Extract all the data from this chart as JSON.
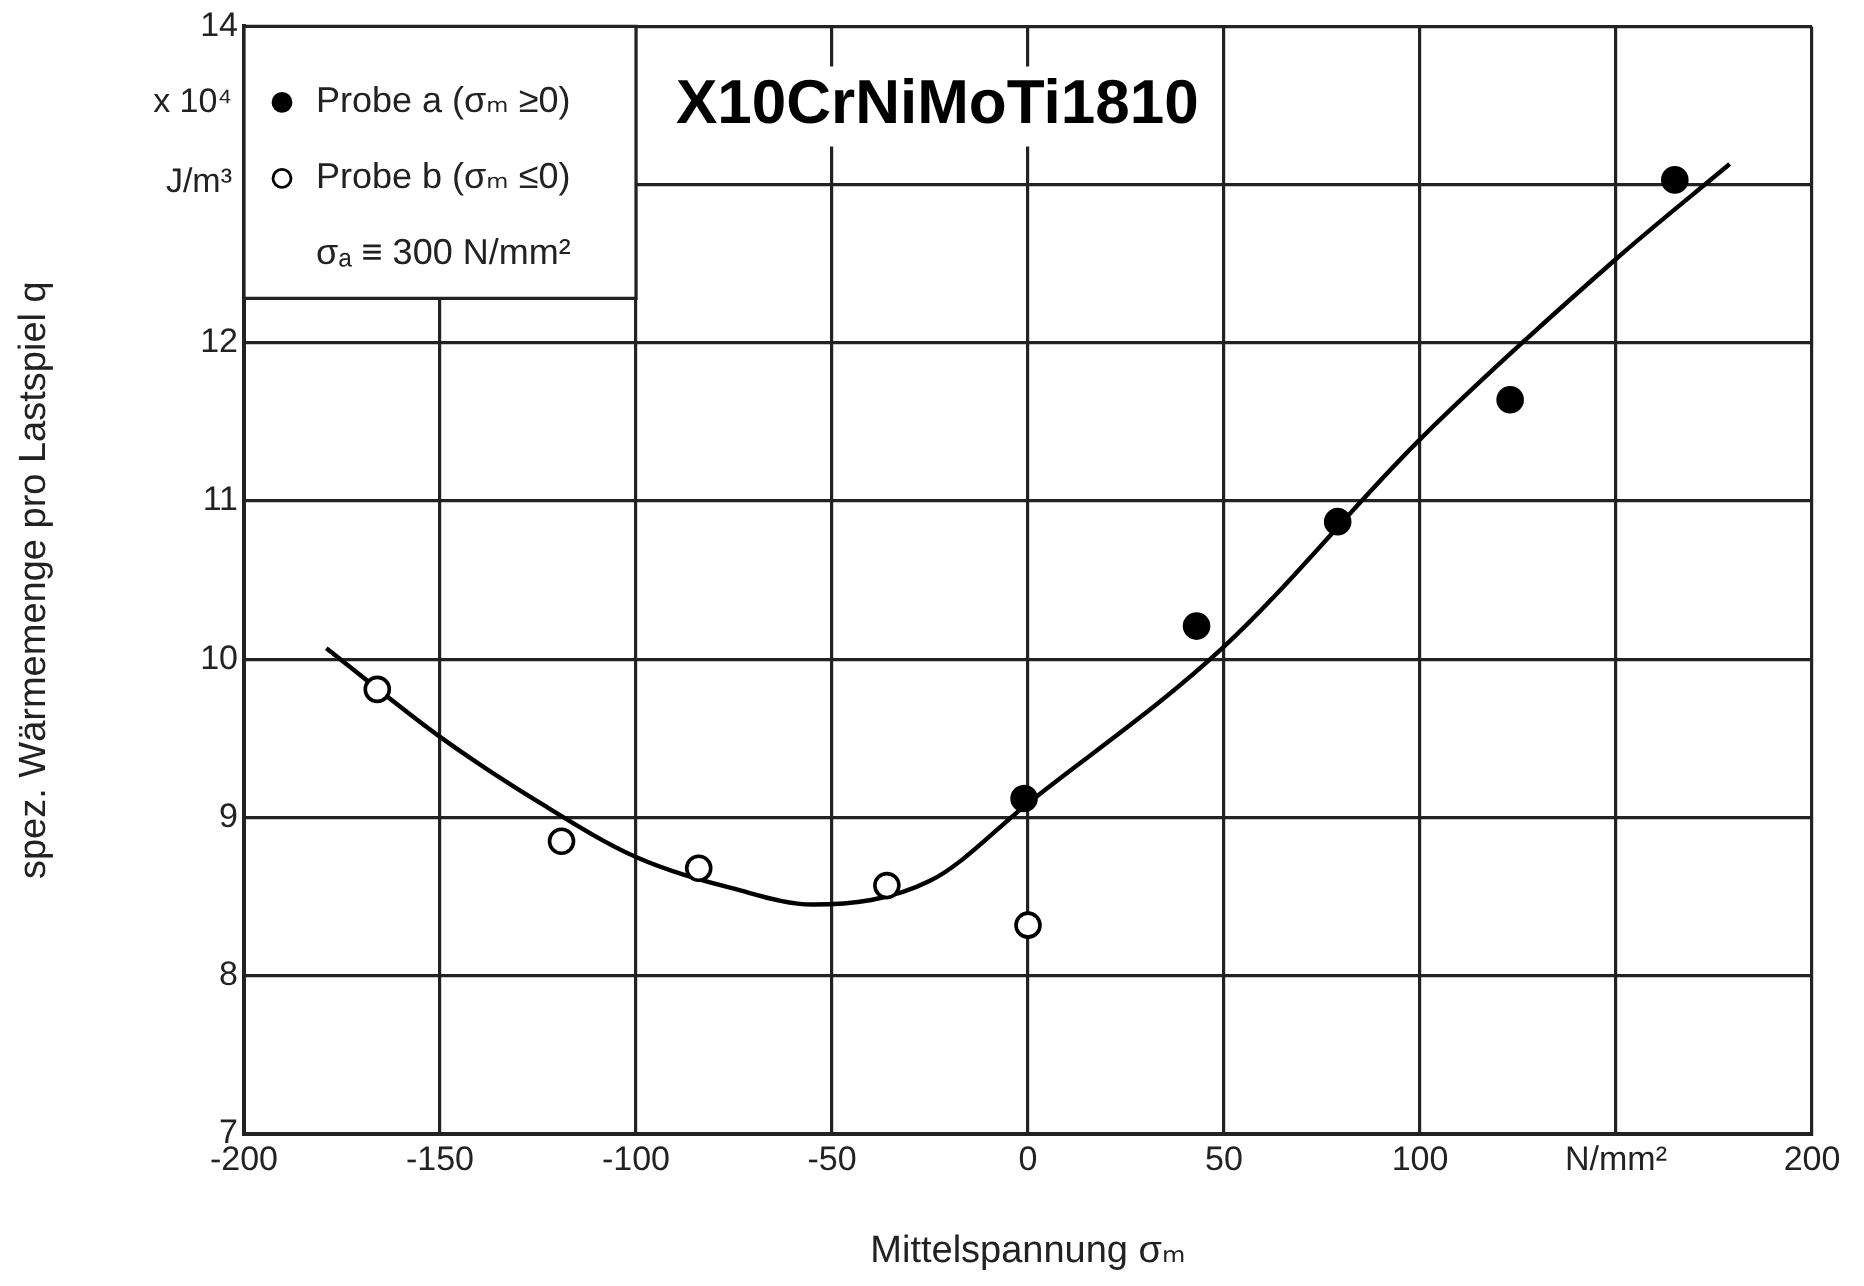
{
  "chart_data": {
    "type": "scatter",
    "title": "X10CrNiMoTi1810",
    "xlabel": "Mittelspannung σₘ",
    "ylabel": "spez. Wärmemenge pro Lastspiel q",
    "annotations": [
      "σₐ ≡ 300 N/mm²",
      "x 10⁴ J/m³"
    ],
    "series": [
      {
        "name": "Probe a (σₘ ≥0)",
        "color": "#000000",
        "x": [
          -1,
          43,
          79,
          123,
          165
        ],
        "values": [
          9.12,
          10.21,
          10.87,
          11.64,
          13.03
        ]
      },
      {
        "name": "Probe b (σₘ ≤0)",
        "color": "#000000",
        "x": [
          -166,
          -119,
          -84,
          -36,
          0
        ],
        "values": [
          9.81,
          8.85,
          8.68,
          8.57,
          8.32
        ]
      },
      {
        "type": "line",
        "color": "#000000",
        "marker": "none",
        "line_style": "solid",
        "x": [
          -179,
          -150,
          -125,
          -100,
          -75,
          -55,
          -25,
          0,
          50,
          100,
          150,
          179
        ],
        "values": [
          10.07,
          9.51,
          9.1,
          8.75,
          8.55,
          8.45,
          8.6,
          9.09,
          10.08,
          11.39,
          12.53,
          13.13
        ]
      }
    ],
    "marker": "circle",
    "xlim": [
      -200,
      200
    ],
    "xticks": [
      -200,
      -150,
      -100,
      -50,
      0,
      50,
      100,
      {
        "value": 150,
        "label": "N/mm²"
      },
      200
    ],
    "ylim": [
      7,
      14
    ],
    "yticks": [
      7,
      8,
      9,
      10,
      11,
      12,
      {
        "value": 13,
        "label": null
      },
      14
    ],
    "grid": true,
    "legend": "top left"
  }
}
